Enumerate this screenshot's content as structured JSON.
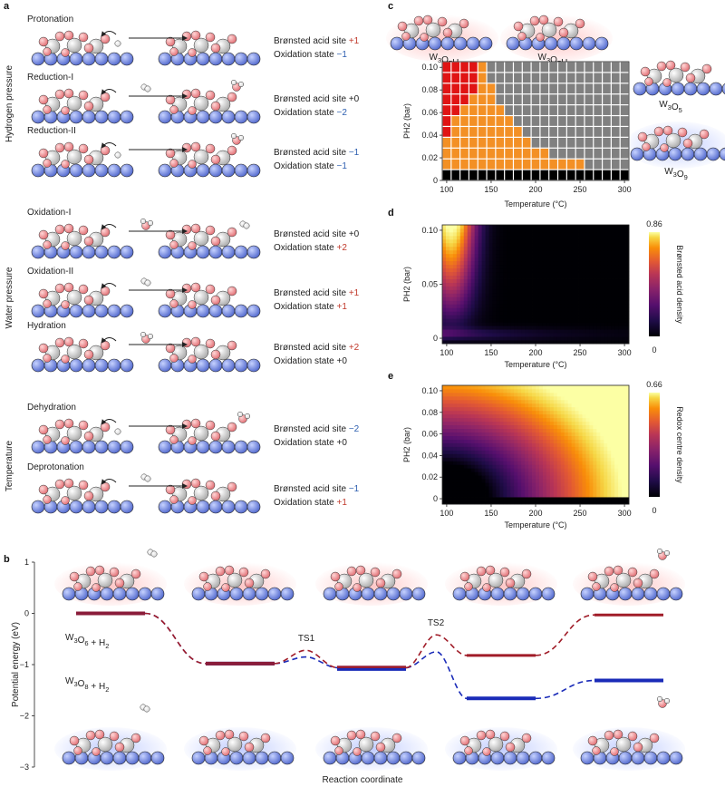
{
  "panel_a": {
    "label": "a",
    "groups": [
      {
        "label": "Hydrogen pressure",
        "steps": [
          {
            "title": "Protonation",
            "bas_text": "Brønsted acid site",
            "bas": "+1",
            "bas_color": "#c0392b",
            "ox_text": "Oxidation state",
            "ox": "−1",
            "ox_color": "#2e5fb0"
          },
          {
            "title": "Reduction-I",
            "bas_text": "Brønsted acid site",
            "bas": "+0",
            "bas_color": "#222222",
            "ox_text": "Oxidation state",
            "ox": "−2",
            "ox_color": "#2e5fb0"
          },
          {
            "title": "Reduction-II",
            "bas_text": "Brønsted acid site",
            "bas": "−1",
            "bas_color": "#2e5fb0",
            "ox_text": "Oxidation state",
            "ox": "−1",
            "ox_color": "#2e5fb0"
          }
        ]
      },
      {
        "label": "Water pressure",
        "steps": [
          {
            "title": "Oxidation-I",
            "bas_text": "Brønsted acid site",
            "bas": "+0",
            "bas_color": "#222222",
            "ox_text": "Oxidation state",
            "ox": "+2",
            "ox_color": "#c0392b"
          },
          {
            "title": "Oxidation-II",
            "bas_text": "Brønsted acid site",
            "bas": "+1",
            "bas_color": "#c0392b",
            "ox_text": "Oxidation state",
            "ox": "+1",
            "ox_color": "#c0392b"
          },
          {
            "title": "Hydration",
            "bas_text": "Brønsted acid site",
            "bas": "+2",
            "bas_color": "#c0392b",
            "ox_text": "Oxidation state",
            "ox": "+0",
            "ox_color": "#222222"
          }
        ]
      },
      {
        "label": "Temperature",
        "steps": [
          {
            "title": "Dehydration",
            "bas_text": "Brønsted acid site",
            "bas": "−2",
            "bas_color": "#2e5fb0",
            "ox_text": "Oxidation state",
            "ox": "+0",
            "ox_color": "#222222"
          },
          {
            "title": "Deprotonation",
            "bas_text": "Brønsted acid site",
            "bas": "−1",
            "bas_color": "#2e5fb0",
            "ox_text": "Oxidation state",
            "ox": "+1",
            "ox_color": "#c0392b"
          }
        ]
      }
    ]
  },
  "panel_c": {
    "label": "c",
    "phase_labels": {
      "w3o7h3": "W3O7H3",
      "w3o7h1": "W3O7H1",
      "w3o5": "W3O5",
      "w3o9": "W3O9"
    },
    "colors": {
      "w3o7h3": "#e01414",
      "w3o7h1": "#f39025",
      "w3o5": "#808080",
      "w3o9": "#000000"
    }
  },
  "panel_d": {
    "label": "d",
    "colorbar_max": "0.86",
    "colorbar_min": "0",
    "colorbar_label": "Brønsted acid density"
  },
  "panel_e": {
    "label": "e",
    "colorbar_max": "0.66",
    "colorbar_min": "0",
    "colorbar_label": "Redox centre density"
  },
  "panel_b": {
    "label": "b",
    "series_red": "W3O6 + H2",
    "series_blue": "W3O8 + H2",
    "ts1": "TS1",
    "ts2": "TS2"
  },
  "chart_data": [
    {
      "type": "heatmap",
      "panel": "c",
      "xlabel": "Temperature (°C)",
      "ylabel": "PH2 (bar)",
      "xlim": [
        95,
        305
      ],
      "ylim": [
        0,
        0.105
      ],
      "x_ticks": [
        100,
        150,
        200,
        250,
        300
      ],
      "y_ticks": [
        0,
        0.02,
        0.04,
        0.06,
        0.08,
        0.1
      ],
      "x_tick_labels": [
        "100",
        "150",
        "200",
        "250",
        "300"
      ],
      "y_tick_labels": [
        "0",
        "0.02",
        "0.04",
        "0.06",
        "0.08",
        "0.10"
      ],
      "temperatures": [
        100,
        110,
        120,
        130,
        140,
        150,
        160,
        170,
        180,
        190,
        200,
        210,
        220,
        230,
        240,
        250,
        260,
        270,
        280,
        290,
        300
      ],
      "pressures": [
        0,
        0.01,
        0.02,
        0.03,
        0.04,
        0.05,
        0.06,
        0.07,
        0.08,
        0.09,
        0.1
      ],
      "phase_codes": [
        "W3O9",
        "W3O7H1",
        "W3O7H3",
        "W3O5"
      ],
      "phase_grid": [
        [
          0,
          0,
          0,
          0,
          0,
          0,
          0,
          0,
          0,
          0,
          0,
          0,
          0,
          0,
          0,
          0,
          0,
          0,
          0,
          0,
          0
        ],
        [
          1,
          1,
          1,
          1,
          1,
          1,
          1,
          1,
          1,
          1,
          1,
          1,
          1,
          1,
          1,
          1,
          3,
          3,
          3,
          3,
          3
        ],
        [
          1,
          1,
          1,
          1,
          1,
          1,
          1,
          1,
          1,
          1,
          1,
          1,
          3,
          3,
          3,
          3,
          3,
          3,
          3,
          3,
          3
        ],
        [
          1,
          1,
          1,
          1,
          1,
          1,
          1,
          1,
          1,
          1,
          3,
          3,
          3,
          3,
          3,
          3,
          3,
          3,
          3,
          3,
          3
        ],
        [
          2,
          1,
          1,
          1,
          1,
          1,
          1,
          1,
          1,
          3,
          3,
          3,
          3,
          3,
          3,
          3,
          3,
          3,
          3,
          3,
          3
        ],
        [
          2,
          1,
          1,
          1,
          1,
          1,
          1,
          1,
          3,
          3,
          3,
          3,
          3,
          3,
          3,
          3,
          3,
          3,
          3,
          3,
          3
        ],
        [
          2,
          2,
          1,
          1,
          1,
          1,
          1,
          3,
          3,
          3,
          3,
          3,
          3,
          3,
          3,
          3,
          3,
          3,
          3,
          3,
          3
        ],
        [
          2,
          2,
          2,
          1,
          1,
          1,
          3,
          3,
          3,
          3,
          3,
          3,
          3,
          3,
          3,
          3,
          3,
          3,
          3,
          3,
          3
        ],
        [
          2,
          2,
          2,
          2,
          1,
          1,
          3,
          3,
          3,
          3,
          3,
          3,
          3,
          3,
          3,
          3,
          3,
          3,
          3,
          3,
          3
        ],
        [
          2,
          2,
          2,
          2,
          1,
          3,
          3,
          3,
          3,
          3,
          3,
          3,
          3,
          3,
          3,
          3,
          3,
          3,
          3,
          3,
          3
        ],
        [
          2,
          2,
          2,
          2,
          1,
          3,
          3,
          3,
          3,
          3,
          3,
          3,
          3,
          3,
          3,
          3,
          3,
          3,
          3,
          3,
          3
        ]
      ]
    },
    {
      "type": "heatmap",
      "panel": "d",
      "xlabel": "Temperature (°C)",
      "ylabel": "PH2 (bar)",
      "xlim": [
        95,
        305
      ],
      "ylim": [
        -0.005,
        0.105
      ],
      "x_ticks": [
        100,
        150,
        200,
        250,
        300
      ],
      "y_ticks": [
        0,
        0.05,
        0.1
      ],
      "x_tick_labels": [
        "100",
        "150",
        "200",
        "250",
        "300"
      ],
      "y_tick_labels": [
        "0",
        "0.05",
        "0.10"
      ],
      "value_range": [
        0,
        0.86
      ],
      "colormap": "inferno",
      "peak": {
        "temperature": 105,
        "pressure": 0.1,
        "value": 0.86
      }
    },
    {
      "type": "heatmap",
      "panel": "e",
      "xlabel": "Temperature (°C)",
      "ylabel": "PH2 (bar)",
      "xlim": [
        95,
        305
      ],
      "ylim": [
        -0.005,
        0.105
      ],
      "x_ticks": [
        100,
        150,
        200,
        250,
        300
      ],
      "y_ticks": [
        0,
        0.02,
        0.04,
        0.06,
        0.08,
        0.1
      ],
      "x_tick_labels": [
        "100",
        "150",
        "200",
        "250",
        "300"
      ],
      "y_tick_labels": [
        "0",
        "0.02",
        "0.04",
        "0.06",
        "0.08",
        "0.10"
      ],
      "value_range": [
        0,
        0.66
      ],
      "colormap": "inferno",
      "peak": {
        "temperature": 300,
        "pressure": 0.1,
        "value": 0.66
      }
    },
    {
      "type": "line",
      "panel": "b",
      "xlabel": "Reaction coordinate",
      "ylabel": "Potential energy (eV)",
      "ylim": [
        -3,
        1
      ],
      "y_ticks": [
        1,
        0,
        -1,
        -2,
        -3
      ],
      "y_tick_labels": [
        "1",
        "0",
        "−1",
        "−2",
        "−3"
      ],
      "states": [
        1,
        2,
        3,
        4,
        5
      ],
      "series": [
        {
          "name": "W3O6 + H2",
          "color": "#a01c28",
          "levels": [
            0,
            -0.98,
            -1.06,
            -0.82,
            -0.03
          ],
          "ts": [
            {
              "label": "TS1",
              "after_state": 2,
              "energy": -0.72
            },
            {
              "label": "TS2",
              "after_state": 3,
              "energy": -0.42
            }
          ]
        },
        {
          "name": "W3O8 + H2",
          "color": "#1a2bb8",
          "levels": [
            0,
            -0.98,
            -1.06,
            -1.66,
            -1.31
          ],
          "ts": [
            {
              "after_state": 2,
              "energy": -0.85
            },
            {
              "after_state": 3,
              "energy": -0.75
            }
          ]
        }
      ]
    }
  ]
}
